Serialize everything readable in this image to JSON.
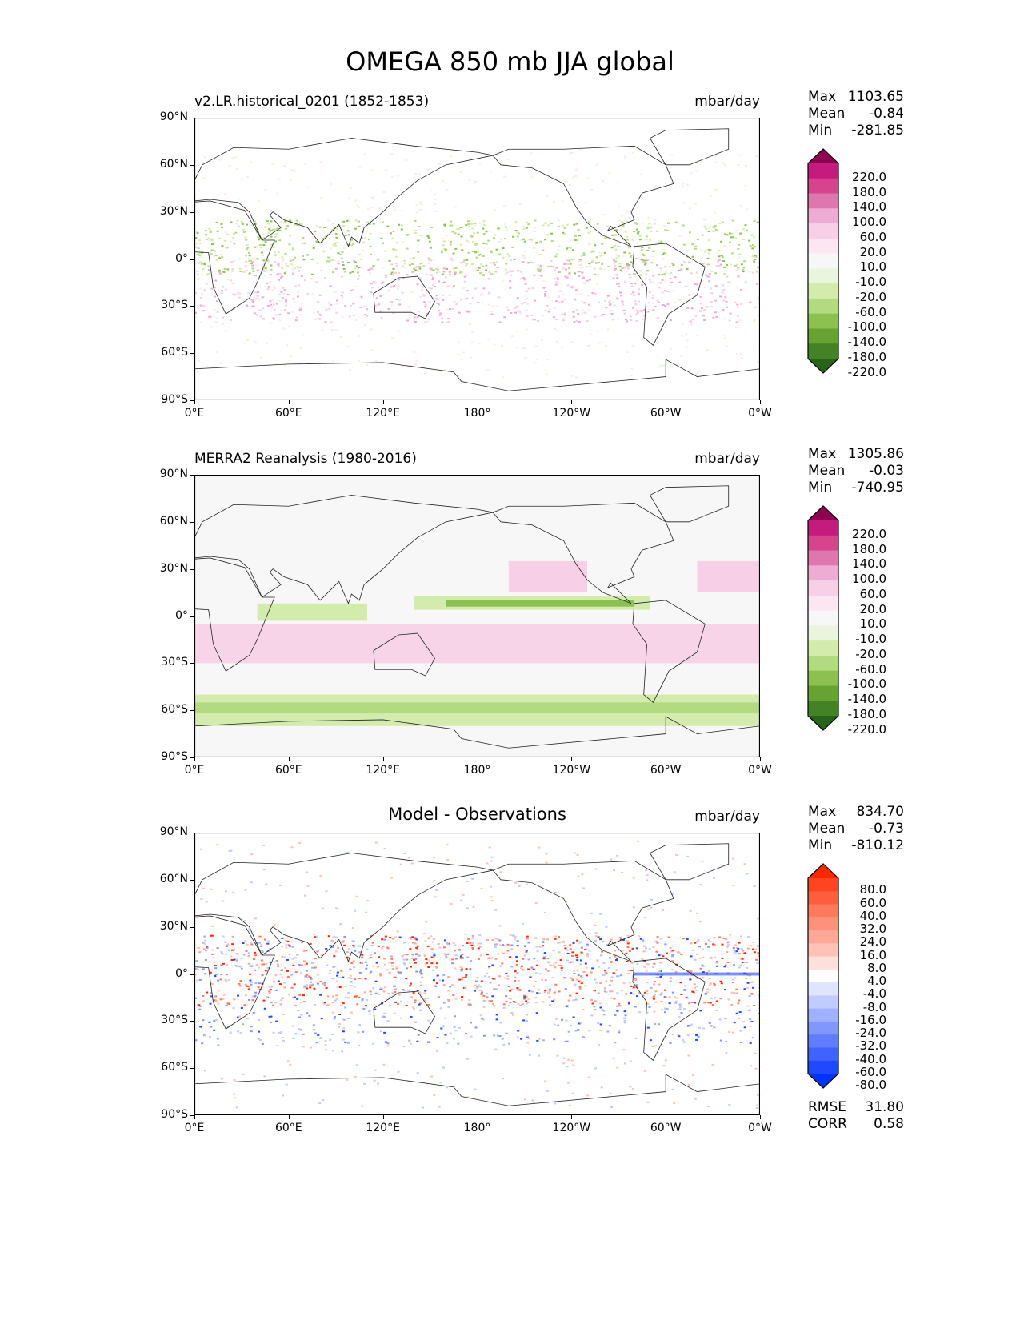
{
  "title": "OMEGA 850 mb JJA global",
  "chart_data": [
    {
      "type": "heatmap",
      "name": "model",
      "left_title": "v2.LR.historical_0201 (1852-1853)",
      "center_title": "",
      "units": "mbar/day",
      "stats": {
        "max_label": "Max",
        "max": "1103.65",
        "mean_label": "Mean",
        "mean": "-0.84",
        "min_label": "Min",
        "min": "-281.85"
      },
      "xticks": [
        "0°E",
        "60°E",
        "120°E",
        "180°",
        "120°W",
        "60°W",
        "0°W"
      ],
      "yticks": [
        "90°N",
        "60°N",
        "30°N",
        "0°",
        "30°S",
        "60°S",
        "90°S"
      ],
      "xlim": [
        0,
        360
      ],
      "ylim": [
        -90,
        90
      ],
      "colorbar": {
        "labels": [
          "220.0",
          "180.0",
          "140.0",
          "100.0",
          "60.0",
          "20.0",
          "10.0",
          "-10.0",
          "-20.0",
          "-60.0",
          "-100.0",
          "-140.0",
          "-180.0",
          "-220.0"
        ],
        "colors": [
          "#8e0152",
          "#c51b7d",
          "#d7438d",
          "#de77ae",
          "#eeabd3",
          "#f7cfe6",
          "#fbe6f1",
          "#f7f7f7",
          "#eaf5dd",
          "#d3ecad",
          "#b2da80",
          "#8cc152",
          "#67a233",
          "#448226",
          "#276419"
        ]
      }
    },
    {
      "type": "heatmap",
      "name": "obs",
      "left_title": "MERRA2 Reanalysis (1980-2016)",
      "center_title": "",
      "units": "mbar/day",
      "stats": {
        "max_label": "Max",
        "max": "1305.86",
        "mean_label": "Mean",
        "mean": "-0.03",
        "min_label": "Min",
        "min": "-740.95"
      },
      "xticks": [
        "0°E",
        "60°E",
        "120°E",
        "180°",
        "120°W",
        "60°W",
        "0°W"
      ],
      "yticks": [
        "90°N",
        "60°N",
        "30°N",
        "0°",
        "30°S",
        "60°S",
        "90°S"
      ],
      "xlim": [
        0,
        360
      ],
      "ylim": [
        -90,
        90
      ],
      "colorbar": {
        "labels": [
          "220.0",
          "180.0",
          "140.0",
          "100.0",
          "60.0",
          "20.0",
          "10.0",
          "-10.0",
          "-20.0",
          "-60.0",
          "-100.0",
          "-140.0",
          "-180.0",
          "-220.0"
        ],
        "colors": [
          "#8e0152",
          "#c51b7d",
          "#d7438d",
          "#de77ae",
          "#eeabd3",
          "#f7cfe6",
          "#fbe6f1",
          "#f7f7f7",
          "#eaf5dd",
          "#d3ecad",
          "#b2da80",
          "#8cc152",
          "#67a233",
          "#448226",
          "#276419"
        ]
      }
    },
    {
      "type": "heatmap",
      "name": "diff",
      "left_title": "",
      "center_title": "Model - Observations",
      "units": "mbar/day",
      "stats": {
        "max_label": "Max",
        "max": "834.70",
        "mean_label": "Mean",
        "mean": "-0.73",
        "min_label": "Min",
        "min": "-810.12"
      },
      "extra_stats": {
        "rmse_label": "RMSE",
        "rmse": "31.80",
        "corr_label": "CORR",
        "corr": "0.58"
      },
      "xticks": [
        "0°E",
        "60°E",
        "120°E",
        "180°",
        "120°W",
        "60°W",
        "0°W"
      ],
      "yticks": [
        "90°N",
        "60°N",
        "30°N",
        "0°",
        "30°S",
        "60°S",
        "90°S"
      ],
      "xlim": [
        0,
        360
      ],
      "ylim": [
        -90,
        90
      ],
      "colorbar": {
        "labels": [
          "80.0",
          "60.0",
          "40.0",
          "32.0",
          "24.0",
          "16.0",
          "8.0",
          "4.0",
          "-4.0",
          "-8.0",
          "-16.0",
          "-24.0",
          "-32.0",
          "-40.0",
          "-60.0",
          "-80.0"
        ],
        "colors": [
          "#ff2600",
          "#ff4422",
          "#ff5e3e",
          "#ff7a5d",
          "#ff907a",
          "#ffa898",
          "#ffc2b6",
          "#ffe0da",
          "#ffffff",
          "#dfe5ff",
          "#c0cbff",
          "#a0b1ff",
          "#8097ff",
          "#607dff",
          "#4063ff",
          "#2049ff",
          "#0033ff"
        ]
      }
    }
  ]
}
